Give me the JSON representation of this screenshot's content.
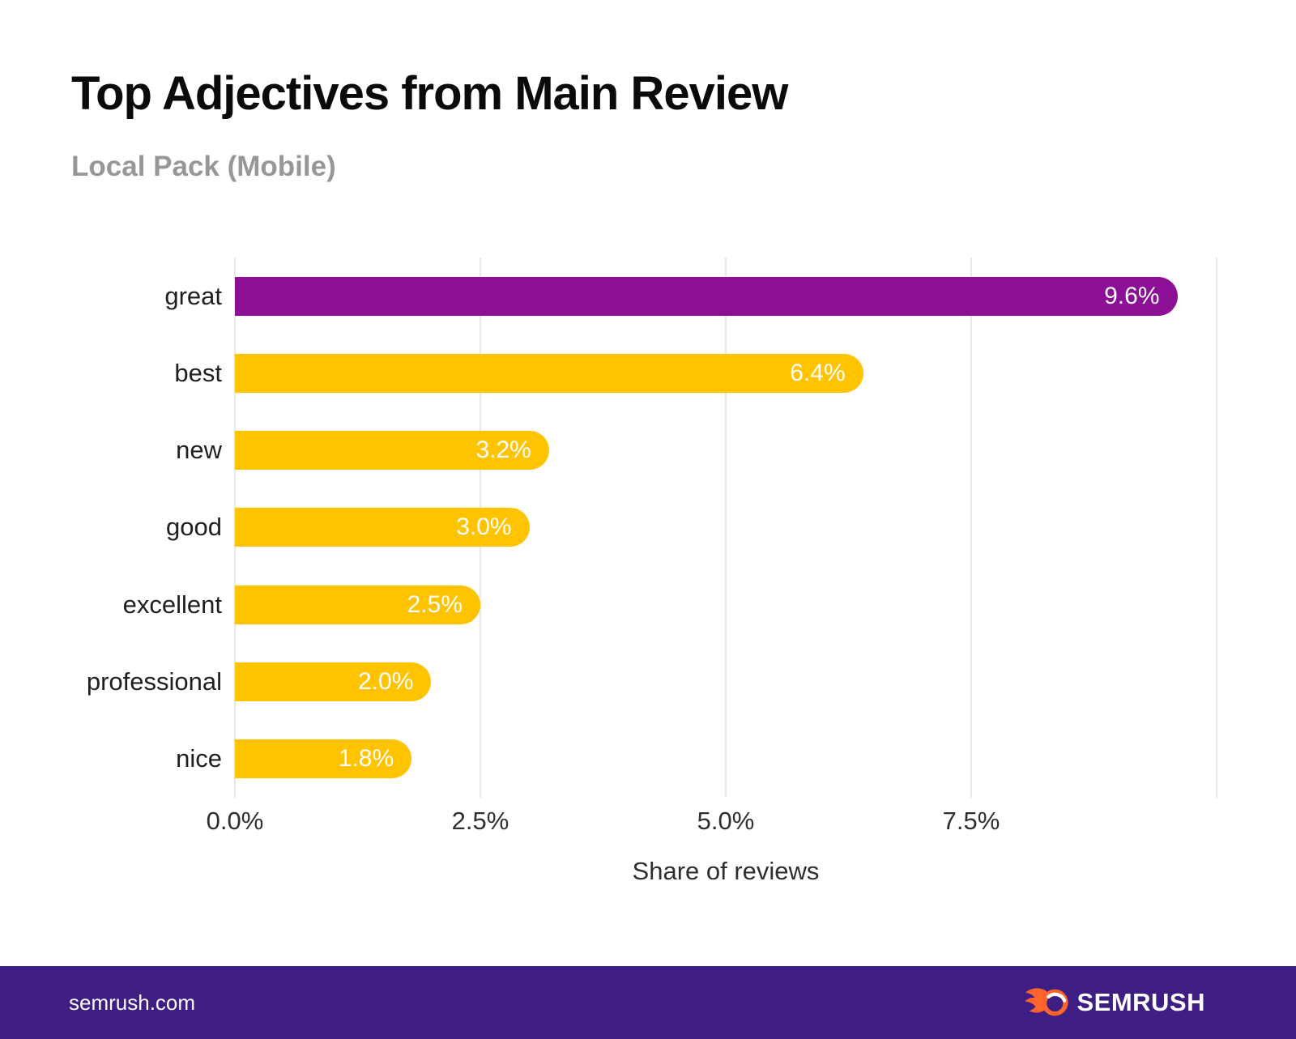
{
  "header": {
    "title": "Top Adjectives from Main Review",
    "subtitle": "Local Pack (Mobile)"
  },
  "chart_data": {
    "type": "bar",
    "orientation": "horizontal",
    "title": "Top Adjectives from Main Review",
    "subtitle": "Local Pack (Mobile)",
    "xlabel": "Share of reviews",
    "ylabel": "",
    "xlim": [
      0,
      10
    ],
    "grid": true,
    "gridline_values": [
      0,
      2.5,
      5,
      7.5,
      10
    ],
    "xticks": [
      {
        "value": 0,
        "label": "0.0%"
      },
      {
        "value": 2.5,
        "label": "2.5%"
      },
      {
        "value": 5,
        "label": "5.0%"
      },
      {
        "value": 7.5,
        "label": "7.5%"
      }
    ],
    "categories": [
      "great",
      "best",
      "new",
      "good",
      "excellent",
      "professional",
      "nice"
    ],
    "values": [
      9.6,
      6.4,
      3.2,
      3.0,
      2.5,
      2.0,
      1.8
    ],
    "value_labels": [
      "9.6%",
      "6.4%",
      "3.2%",
      "3.0%",
      "2.5%",
      "2.0%",
      "1.8%"
    ],
    "bar_colors": [
      "#8b1095",
      "#ffc300",
      "#ffc300",
      "#ffc300",
      "#ffc300",
      "#ffc300",
      "#ffc300"
    ],
    "highlight_color": "#8b1095",
    "default_color": "#ffc300",
    "value_label_color": "#ffffff",
    "legend": "none"
  },
  "footer": {
    "site": "semrush.com",
    "brand": "SEMRUSH",
    "background_color": "#3e1e82",
    "logo_color": "#ff642d"
  }
}
